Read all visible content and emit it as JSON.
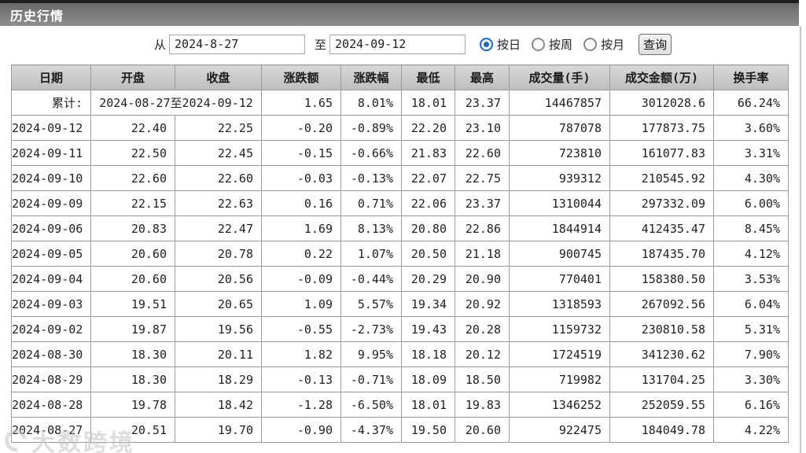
{
  "title_bar": {
    "title": "历史行情"
  },
  "filter": {
    "from_label": "从",
    "from_value": "2024-8-27",
    "to_label": "至",
    "to_value": "2024-09-12",
    "radios": [
      {
        "label": "按日",
        "selected": true
      },
      {
        "label": "按周",
        "selected": false
      },
      {
        "label": "按月",
        "selected": false
      }
    ],
    "query_button": "查询"
  },
  "table": {
    "headers": [
      "日期",
      "开盘",
      "收盘",
      "涨跌额",
      "涨跌幅",
      "最低",
      "最高",
      "成交量(手)",
      "成交金额(万)",
      "换手率"
    ],
    "summary_row": {
      "label": "累计:",
      "range": "2024-08-27至2024-09-12",
      "change": "1.65",
      "change_pct": "8.01%",
      "low": "18.01",
      "high": "23.37",
      "volume": "14467857",
      "amount": "3012028.6",
      "turnover_rate": "66.24%"
    },
    "rows": [
      [
        "2024-09-12",
        "22.40",
        "22.25",
        "-0.20",
        "-0.89%",
        "22.20",
        "23.10",
        "787078",
        "177873.75",
        "3.60%"
      ],
      [
        "2024-09-11",
        "22.50",
        "22.45",
        "-0.15",
        "-0.66%",
        "21.83",
        "22.60",
        "723810",
        "161077.83",
        "3.31%"
      ],
      [
        "2024-09-10",
        "22.60",
        "22.60",
        "-0.03",
        "-0.13%",
        "22.07",
        "22.75",
        "939312",
        "210545.92",
        "4.30%"
      ],
      [
        "2024-09-09",
        "22.15",
        "22.63",
        "0.16",
        "0.71%",
        "22.06",
        "23.37",
        "1310044",
        "297332.09",
        "6.00%"
      ],
      [
        "2024-09-06",
        "20.83",
        "22.47",
        "1.69",
        "8.13%",
        "20.80",
        "22.86",
        "1844914",
        "412435.47",
        "8.45%"
      ],
      [
        "2024-09-05",
        "20.60",
        "20.78",
        "0.22",
        "1.07%",
        "20.50",
        "21.18",
        "900745",
        "187435.70",
        "4.12%"
      ],
      [
        "2024-09-04",
        "20.60",
        "20.56",
        "-0.09",
        "-0.44%",
        "20.29",
        "20.90",
        "770401",
        "158380.50",
        "3.53%"
      ],
      [
        "2024-09-03",
        "19.51",
        "20.65",
        "1.09",
        "5.57%",
        "19.34",
        "20.92",
        "1318593",
        "267092.56",
        "6.04%"
      ],
      [
        "2024-09-02",
        "19.87",
        "19.56",
        "-0.55",
        "-2.73%",
        "19.43",
        "20.28",
        "1159732",
        "230810.58",
        "5.31%"
      ],
      [
        "2024-08-30",
        "18.30",
        "20.11",
        "1.82",
        "9.95%",
        "18.18",
        "20.12",
        "1724519",
        "341230.62",
        "7.90%"
      ],
      [
        "2024-08-29",
        "18.30",
        "18.29",
        "-0.13",
        "-0.71%",
        "18.09",
        "18.50",
        "719982",
        "131704.25",
        "3.30%"
      ],
      [
        "2024-08-28",
        "19.78",
        "18.42",
        "-1.28",
        "-6.50%",
        "18.01",
        "19.83",
        "1346252",
        "252059.55",
        "6.16%"
      ],
      [
        "2024-08-27",
        "20.51",
        "19.70",
        "-0.90",
        "-4.37%",
        "19.50",
        "20.60",
        "922475",
        "184049.78",
        "4.22%"
      ]
    ]
  },
  "watermark": {
    "text": "大数跨境"
  }
}
